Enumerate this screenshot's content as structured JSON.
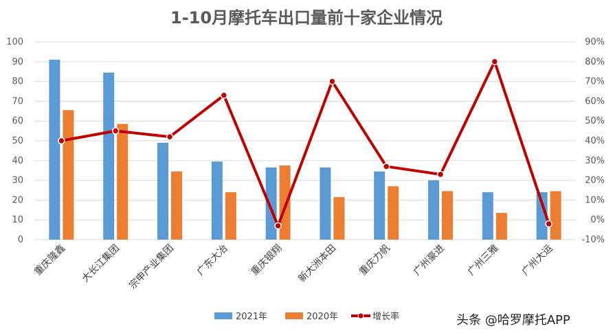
{
  "chart_data": {
    "type": "bar",
    "title": "1-10月摩托车出口量前十家企业情况",
    "categories": [
      "重庆隆鑫",
      "大长江集团",
      "宗申产业集团",
      "广东大冶",
      "重庆银翔",
      "新大洲本田",
      "重庆力帆",
      "广州豪进",
      "广州三雅",
      "广州大运"
    ],
    "series": [
      {
        "name": "2021年",
        "type": "bar",
        "axis": "left",
        "color": "#5B9BD5",
        "values": [
          91,
          84.5,
          49,
          39.5,
          36.5,
          36.5,
          34.5,
          30,
          24,
          24
        ]
      },
      {
        "name": "2020年",
        "type": "bar",
        "axis": "left",
        "color": "#ED7D31",
        "values": [
          65.5,
          58.5,
          34.5,
          24,
          37.5,
          21.5,
          27,
          24.5,
          13.5,
          24.5
        ]
      },
      {
        "name": "增长率",
        "type": "line",
        "axis": "right",
        "color": "#C00000",
        "values": [
          40,
          45,
          42,
          63,
          -3,
          70,
          27,
          23,
          80,
          -2
        ]
      }
    ],
    "y_left": {
      "min": 0,
      "max": 100,
      "ticks": [
        "0",
        "10",
        "20",
        "30",
        "40",
        "50",
        "60",
        "70",
        "80",
        "90",
        "100"
      ]
    },
    "y_right": {
      "min": -10,
      "max": 90,
      "ticks": [
        "-10%",
        "0%",
        "10%",
        "20%",
        "30%",
        "40%",
        "50%",
        "60%",
        "70%",
        "80%",
        "90%"
      ]
    },
    "grid": true,
    "legend_position": "bottom"
  },
  "watermark": "头条 @哈罗摩托APP"
}
